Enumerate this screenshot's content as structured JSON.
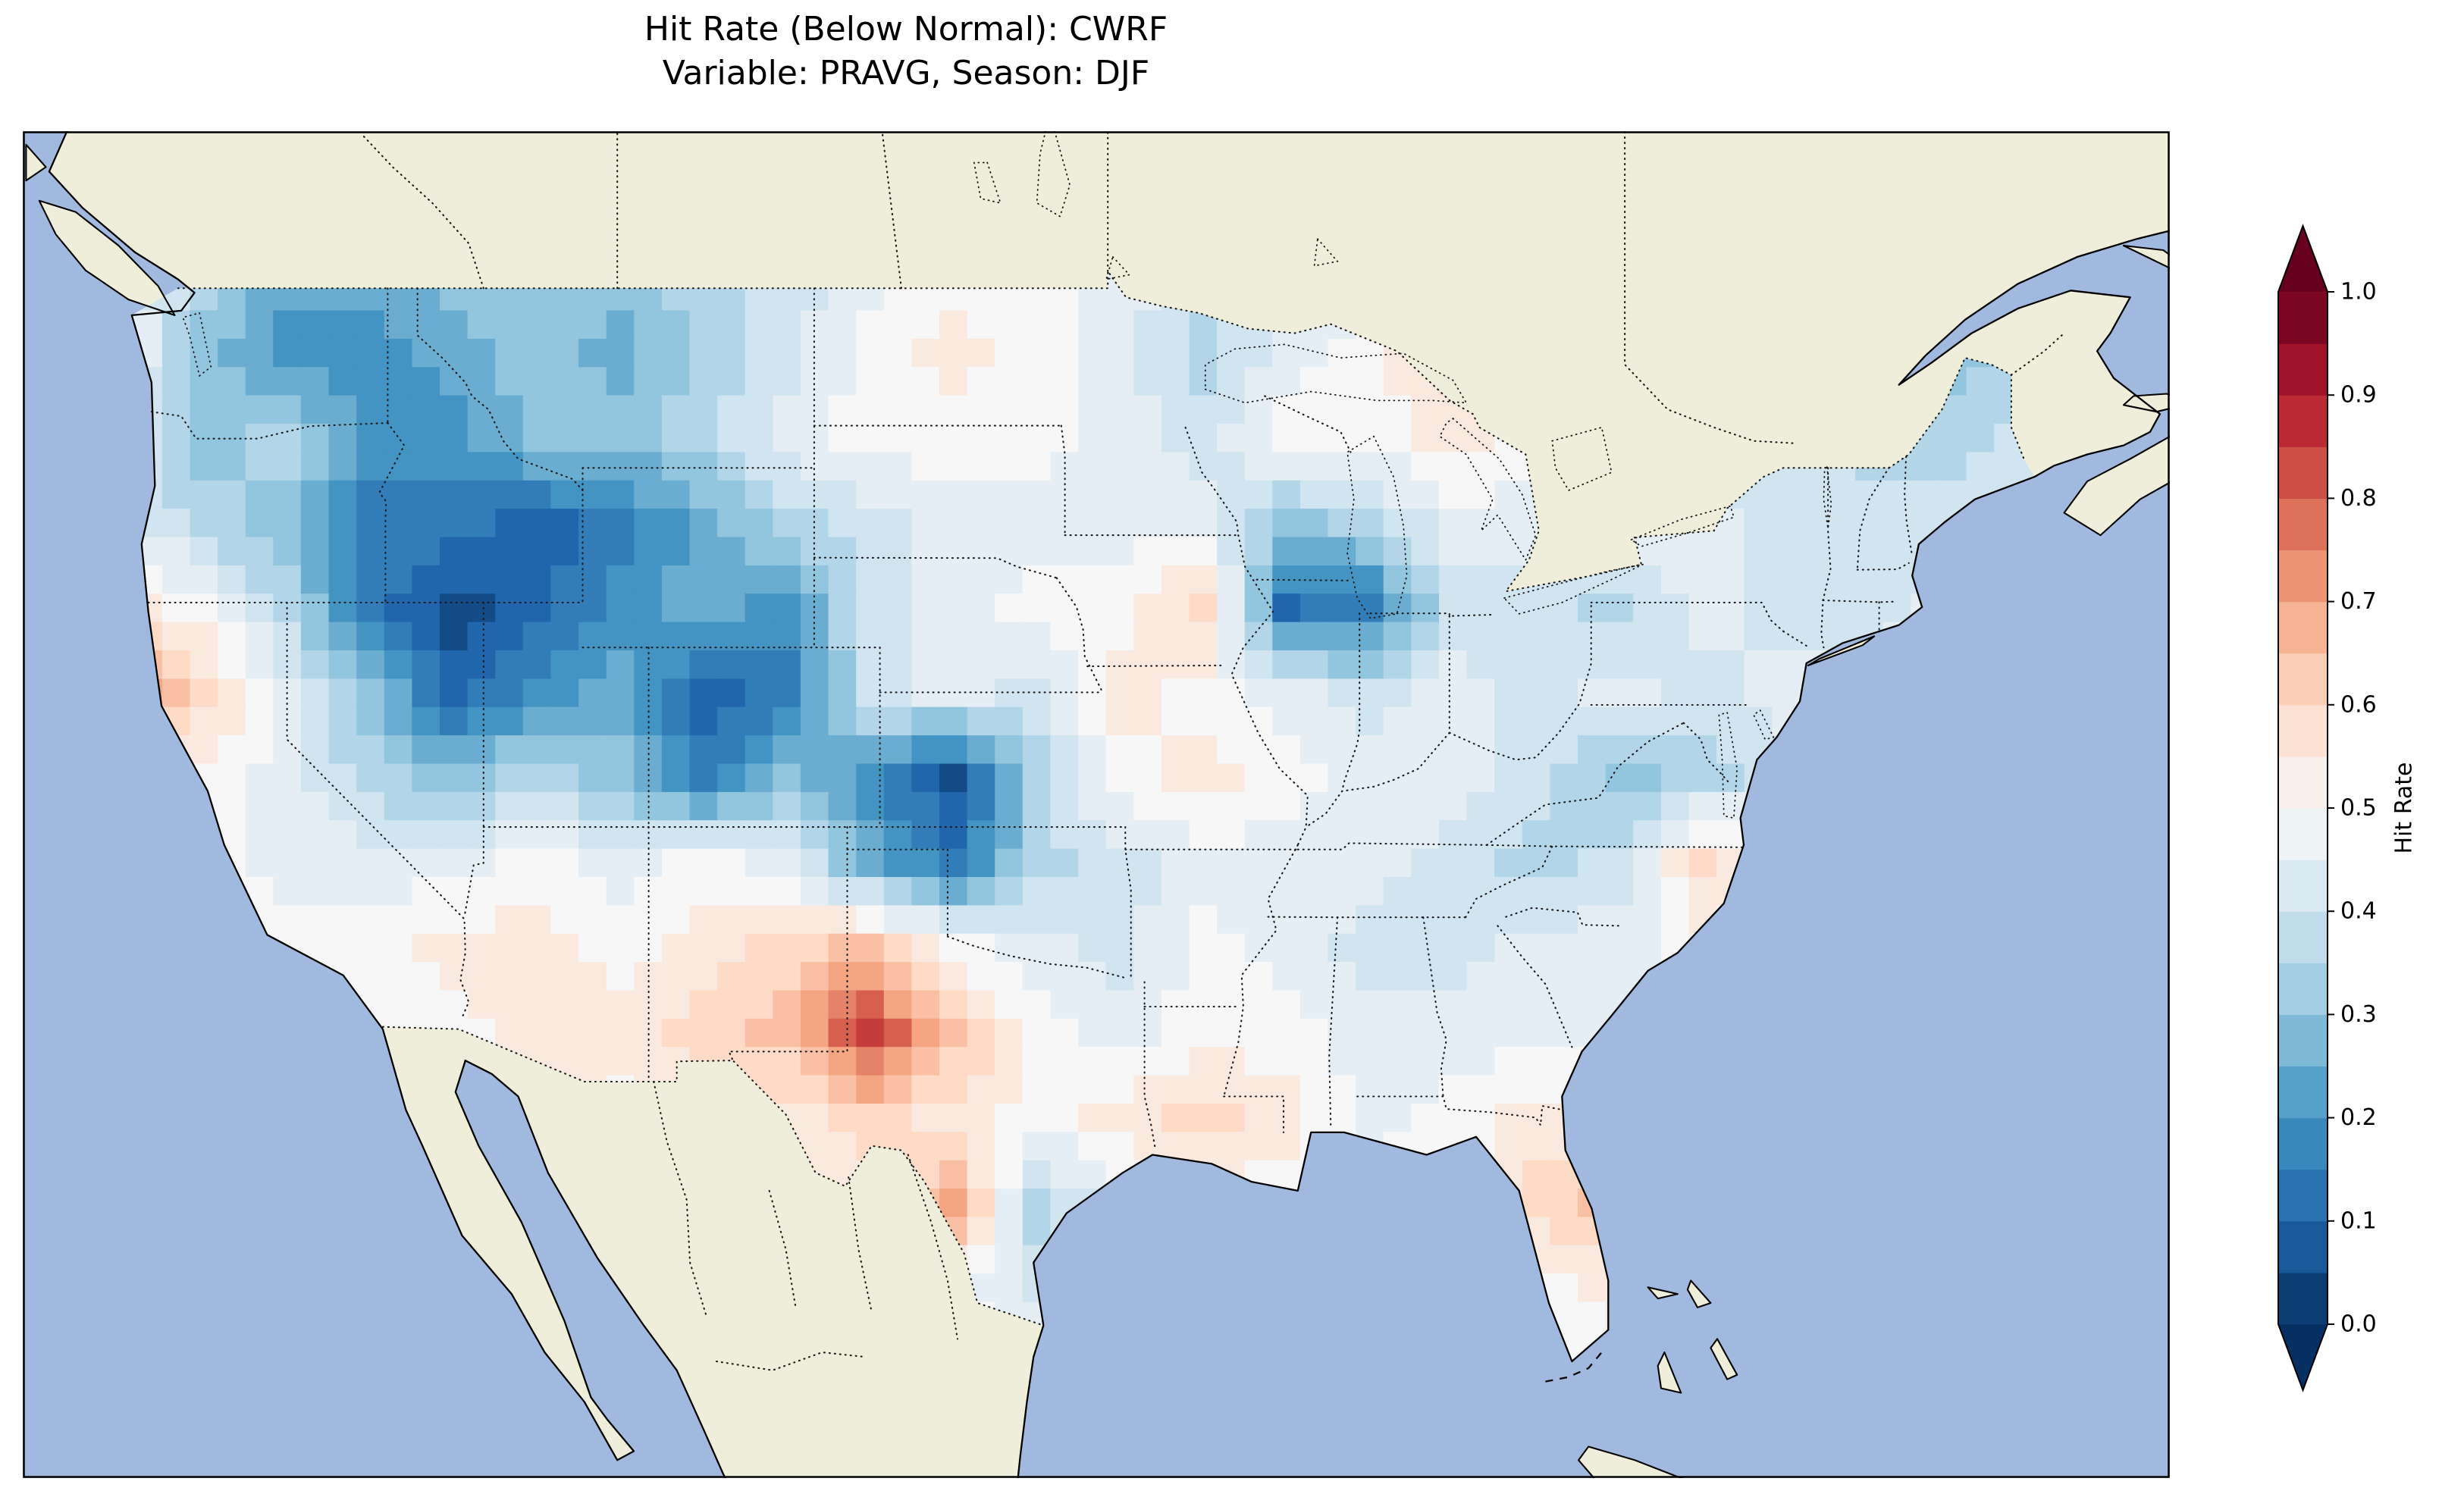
{
  "figure": {
    "title": "Hit Rate (Below Normal): CWRF",
    "subtitle": "Variable: PRAVG, Season: DJF"
  },
  "colorbar": {
    "label": "Hit Rate",
    "tick_labels": [
      "1.0",
      "0.9",
      "0.8",
      "0.7",
      "0.6",
      "0.5",
      "0.4",
      "0.3",
      "0.2",
      "0.1",
      "0.0"
    ]
  },
  "chart_data": {
    "type": "heatmap",
    "title": "Hit Rate (Below Normal): CWRF",
    "subtitle": "Variable: PRAVG, Season: DJF",
    "colorbar_label": "Hit Rate",
    "colorbar_ticks": [
      0.0,
      0.1,
      0.2,
      0.3,
      0.4,
      0.5,
      0.6,
      0.7,
      0.8,
      0.9,
      1.0
    ],
    "value_range": [
      0.0,
      1.0
    ],
    "colorbar_extend": "both",
    "colormap": "RdBu_r",
    "colormap_anchors": [
      "#053061",
      "#2166ac",
      "#4393c3",
      "#92c5de",
      "#d1e5f0",
      "#f7f7f7",
      "#fddbc7",
      "#f4a582",
      "#d6604d",
      "#b2182b",
      "#67001f"
    ],
    "region": "Contiguous United States",
    "projection_extent": {
      "lon": [
        -128.0,
        -63.0
      ],
      "lat": [
        22.5,
        52.5
      ]
    },
    "map_features": {
      "ocean_color": "#a2b9df",
      "land_color": "#efeedb",
      "lake_color": "#8fa5d4",
      "coastline_color": "#000000",
      "border_style": "dotted"
    },
    "grid": {
      "description": "Estimated hit-rate field on a coarse lon/lat grid, row 0 = north",
      "lon_min": -126.3,
      "lon_max": -65.8,
      "lat_min": 23.9,
      "lat_max": 50.4,
      "ncols": 24,
      "nrows": 14,
      "values": [
        [
          0.45,
          0.35,
          0.25,
          0.25,
          0.3,
          0.3,
          0.3,
          0.35,
          0.4,
          0.45,
          0.5,
          0.5,
          0.45,
          0.4,
          0.45,
          0.45,
          0.5,
          0.45,
          0.4,
          0.4,
          0.35,
          0.35,
          0.3,
          0.35
        ],
        [
          0.5,
          0.3,
          0.2,
          0.2,
          0.25,
          0.3,
          0.25,
          0.35,
          0.4,
          0.5,
          0.55,
          0.5,
          0.45,
          0.35,
          0.45,
          0.5,
          0.6,
          0.5,
          0.45,
          0.4,
          0.4,
          0.35,
          0.3,
          0.35
        ],
        [
          0.45,
          0.3,
          0.35,
          0.2,
          0.2,
          0.3,
          0.3,
          0.35,
          0.45,
          0.5,
          0.5,
          0.5,
          0.45,
          0.4,
          0.5,
          0.5,
          0.55,
          0.5,
          0.45,
          0.4,
          0.4,
          0.35,
          0.35,
          0.4
        ],
        [
          0.45,
          0.35,
          0.3,
          0.15,
          0.15,
          0.1,
          0.15,
          0.25,
          0.35,
          0.4,
          0.45,
          0.45,
          0.45,
          0.45,
          0.3,
          0.35,
          0.45,
          0.45,
          0.45,
          0.45,
          0.4,
          0.4,
          0.4,
          0.4
        ],
        [
          0.55,
          0.5,
          0.35,
          0.15,
          0.05,
          0.1,
          0.2,
          0.25,
          0.2,
          0.4,
          0.45,
          0.5,
          0.5,
          0.6,
          0.12,
          0.15,
          0.4,
          0.4,
          0.35,
          0.45,
          0.4,
          0.4,
          0.45,
          0.45
        ],
        [
          0.75,
          0.6,
          0.45,
          0.3,
          0.1,
          0.2,
          0.25,
          0.1,
          0.15,
          0.4,
          0.45,
          0.4,
          0.55,
          0.5,
          0.45,
          0.4,
          0.45,
          0.4,
          0.45,
          0.4,
          0.45,
          0.45,
          0.45,
          0.45
        ],
        [
          0.55,
          0.5,
          0.45,
          0.35,
          0.3,
          0.35,
          0.3,
          0.15,
          0.3,
          0.2,
          0.05,
          0.35,
          0.5,
          0.55,
          0.5,
          0.45,
          0.45,
          0.4,
          0.3,
          0.35,
          0.4,
          0.45,
          0.45,
          0.45
        ],
        [
          0.5,
          0.5,
          0.45,
          0.45,
          0.45,
          0.5,
          0.45,
          0.5,
          0.45,
          0.25,
          0.15,
          0.35,
          0.4,
          0.45,
          0.45,
          0.45,
          0.4,
          0.35,
          0.4,
          0.6,
          0.5,
          0.5,
          0.5,
          0.5
        ],
        [
          0.45,
          0.5,
          0.5,
          0.5,
          0.55,
          0.55,
          0.5,
          0.55,
          0.6,
          0.65,
          0.5,
          0.45,
          0.4,
          0.5,
          0.45,
          0.4,
          0.4,
          0.45,
          0.45,
          0.5,
          0.5,
          0.5,
          0.5,
          0.5
        ],
        [
          0.4,
          0.45,
          0.5,
          0.5,
          0.5,
          0.55,
          0.55,
          0.6,
          0.65,
          0.85,
          0.65,
          0.5,
          0.45,
          0.5,
          0.5,
          0.45,
          0.45,
          0.45,
          0.45,
          0.45,
          0.5,
          0.5,
          0.5,
          0.5
        ],
        [
          0.5,
          0.5,
          0.5,
          0.5,
          0.5,
          0.55,
          0.5,
          0.55,
          0.55,
          0.6,
          0.55,
          0.5,
          0.55,
          0.6,
          0.55,
          0.45,
          0.5,
          0.55,
          0.55,
          0.5,
          0.5,
          0.5,
          0.5,
          0.5
        ],
        [
          0.5,
          0.5,
          0.5,
          0.5,
          0.5,
          0.5,
          0.5,
          0.5,
          0.5,
          0.55,
          0.7,
          0.35,
          0.45,
          0.5,
          0.5,
          0.5,
          0.5,
          0.6,
          0.65,
          0.6,
          0.5,
          0.5,
          0.5,
          0.5
        ],
        [
          0.5,
          0.5,
          0.5,
          0.5,
          0.5,
          0.5,
          0.5,
          0.5,
          0.5,
          0.5,
          0.5,
          0.4,
          0.5,
          0.5,
          0.5,
          0.5,
          0.5,
          0.5,
          0.55,
          0.55,
          0.5,
          0.5,
          0.5,
          0.5
        ],
        [
          0.5,
          0.5,
          0.5,
          0.5,
          0.5,
          0.5,
          0.5,
          0.5,
          0.5,
          0.5,
          0.5,
          0.5,
          0.5,
          0.5,
          0.5,
          0.5,
          0.5,
          0.5,
          0.5,
          0.5,
          0.5,
          0.5,
          0.5,
          0.5
        ]
      ]
    }
  }
}
